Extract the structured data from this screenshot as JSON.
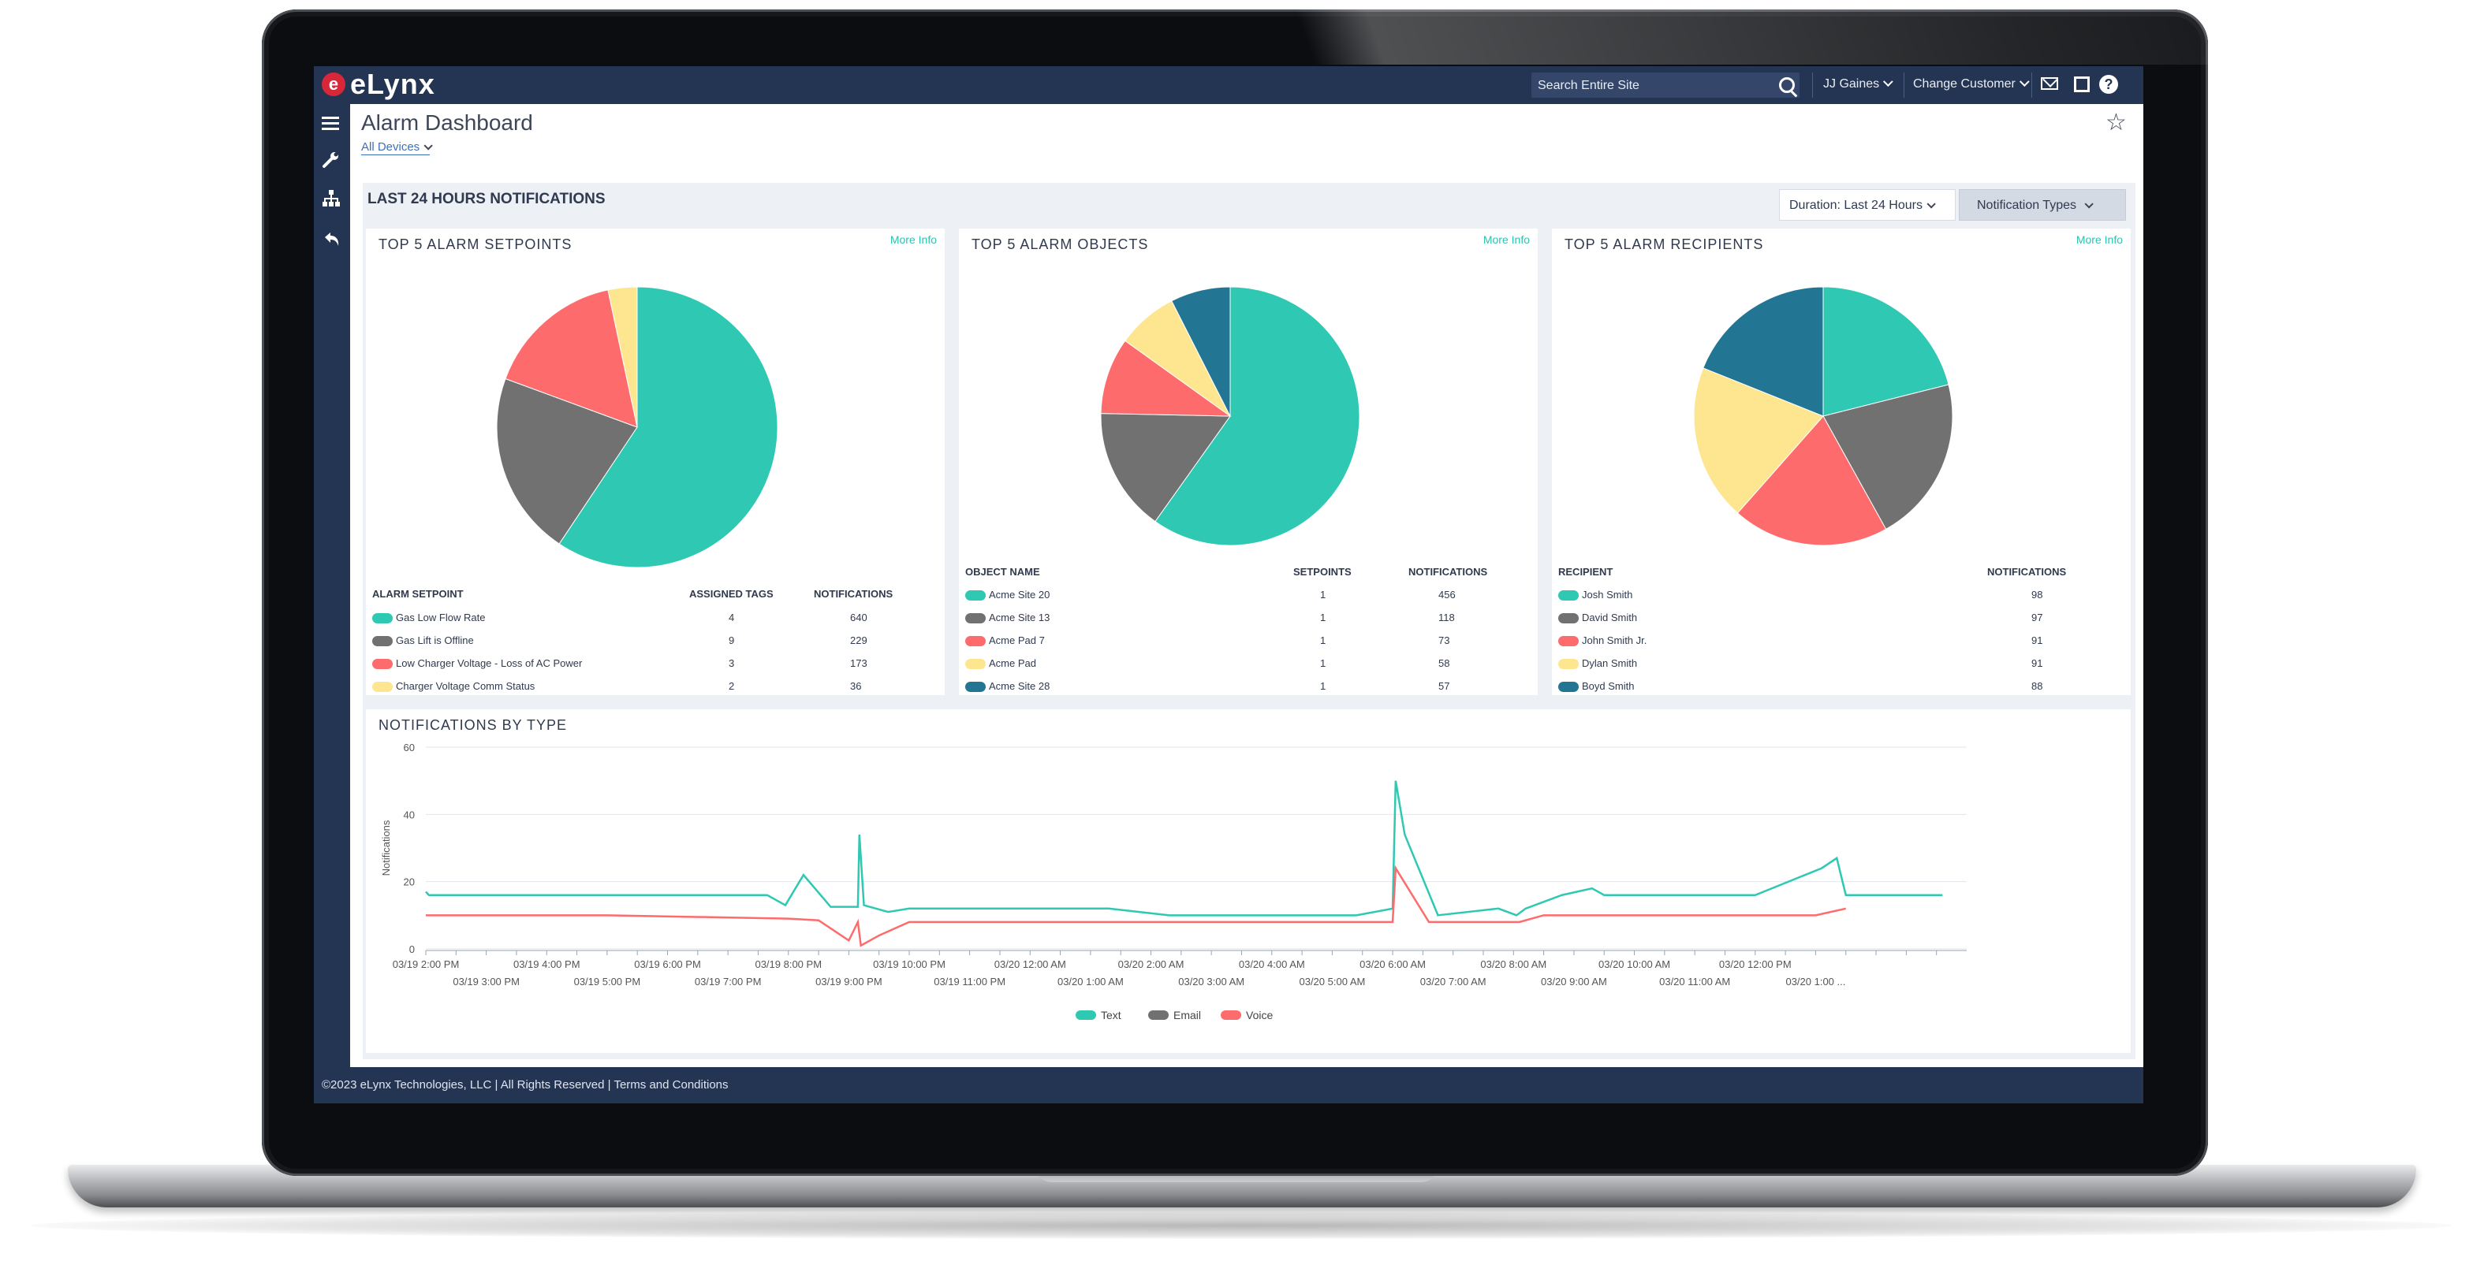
{
  "app": {
    "logo_letter": "e",
    "logo_text": "eLynx"
  },
  "header": {
    "search_placeholder": "Search Entire Site",
    "user": "JJ Gaines",
    "change_customer": "Change Customer"
  },
  "page": {
    "title": "Alarm Dashboard",
    "device_filter": "All Devices"
  },
  "section": {
    "title": "LAST 24 HOURS NOTIFICATIONS",
    "duration": "Duration: Last 24 Hours",
    "notification_types": "Notification Types"
  },
  "colors": {
    "teal": "#2ec8b3",
    "gray": "#717171",
    "red": "#fe6b6d",
    "yellow": "#fee690",
    "blue": "#227694",
    "navy": "#243453"
  },
  "setpoints": {
    "title": "TOP 5 ALARM SETPOINTS",
    "more": "More Info",
    "headers": [
      "ALARM SETPOINT",
      "ASSIGNED TAGS",
      "NOTIFICATIONS"
    ],
    "rows": [
      {
        "name": "Gas Low Flow Rate",
        "tags": "4",
        "notifications": "640",
        "color": "#2ec8b3"
      },
      {
        "name": "Gas Lift is Offline",
        "tags": "9",
        "notifications": "229",
        "color": "#717171"
      },
      {
        "name": "Low Charger Voltage - Loss of AC Power",
        "tags": "3",
        "notifications": "173",
        "color": "#fe6b6d"
      },
      {
        "name": "Charger Voltage Comm Status",
        "tags": "2",
        "notifications": "36",
        "color": "#fee690"
      }
    ]
  },
  "objects": {
    "title": "TOP 5 ALARM OBJECTS",
    "more": "More Info",
    "headers": [
      "OBJECT NAME",
      "SETPOINTS",
      "NOTIFICATIONS"
    ],
    "rows": [
      {
        "name": "Acme Site 20",
        "setpoints": "1",
        "notifications": "456",
        "color": "#2ec8b3"
      },
      {
        "name": "Acme Site 13",
        "setpoints": "1",
        "notifications": "118",
        "color": "#717171"
      },
      {
        "name": "Acme Pad 7",
        "setpoints": "1",
        "notifications": "73",
        "color": "#fe6b6d"
      },
      {
        "name": "Acme Pad",
        "setpoints": "1",
        "notifications": "58",
        "color": "#fee690"
      },
      {
        "name": "Acme Site 28",
        "setpoints": "1",
        "notifications": "57",
        "color": "#227694"
      }
    ]
  },
  "recipients": {
    "title": "TOP 5 ALARM RECIPIENTS",
    "more": "More Info",
    "headers": [
      "RECIPIENT",
      "NOTIFICATIONS"
    ],
    "rows": [
      {
        "name": "Josh Smith",
        "notifications": "98",
        "color": "#2ec8b3"
      },
      {
        "name": "David Smith",
        "notifications": "97",
        "color": "#717171"
      },
      {
        "name": "John Smith Jr.",
        "notifications": "91",
        "color": "#fe6b6d"
      },
      {
        "name": "Dylan Smith",
        "notifications": "91",
        "color": "#fee690"
      },
      {
        "name": "Boyd Smith",
        "notifications": "88",
        "color": "#227694"
      }
    ]
  },
  "line": {
    "title": "NOTIFICATIONS BY TYPE",
    "ylabel": "Notifications",
    "legend": [
      "Text",
      "Email",
      "Voice"
    ]
  },
  "footer": {
    "text": "©2023 eLynx Technologies, LLC | All Rights Reserved | Terms and Conditions"
  },
  "chart_data": [
    {
      "type": "pie",
      "title": "TOP 5 ALARM SETPOINTS",
      "categories": [
        "Gas Low Flow Rate",
        "Gas Lift is Offline",
        "Low Charger Voltage - Loss of AC Power",
        "Charger Voltage Comm Status"
      ],
      "values": [
        640,
        229,
        173,
        36
      ]
    },
    {
      "type": "pie",
      "title": "TOP 5 ALARM OBJECTS",
      "categories": [
        "Acme Site 20",
        "Acme Site 13",
        "Acme Pad 7",
        "Acme Pad",
        "Acme Site 28"
      ],
      "values": [
        456,
        118,
        73,
        58,
        57
      ]
    },
    {
      "type": "pie",
      "title": "TOP 5 ALARM RECIPIENTS",
      "categories": [
        "Josh Smith",
        "David Smith",
        "John Smith Jr.",
        "Dylan Smith",
        "Boyd Smith"
      ],
      "values": [
        98,
        97,
        91,
        91,
        88
      ]
    },
    {
      "type": "line",
      "title": "NOTIFICATIONS BY TYPE",
      "ylabel": "Notifications",
      "ylim": [
        0,
        60
      ],
      "yticks": [
        0,
        20,
        40,
        60
      ],
      "xtick_labels_top": [
        "03/19 2:00 PM",
        "03/19 4:00 PM",
        "03/19 6:00 PM",
        "03/19 8:00 PM",
        "03/19 10:00 PM",
        "03/20 12:00 AM",
        "03/20 2:00 AM",
        "03/20 4:00 AM",
        "03/20 6:00 AM",
        "03/20 8:00 AM",
        "03/20 10:00 AM",
        "03/20 12:00 PM"
      ],
      "xtick_labels_bottom": [
        "03/19 3:00 PM",
        "03/19 5:00 PM",
        "03/19 7:00 PM",
        "03/19 9:00 PM",
        "03/19 11:00 PM",
        "03/20 1:00 AM",
        "03/20 3:00 AM",
        "03/20 5:00 AM",
        "03/20 7:00 AM",
        "03/20 9:00 AM",
        "03/20 11:00 AM",
        "03/20 1:00 ..."
      ],
      "x_hours_since_0319_2pm_note": "x values are hours after 03/19 2:00 PM",
      "series": [
        {
          "name": "Text",
          "color": "#2ec8b3",
          "x": [
            0,
            0.1,
            11.3,
            11.9,
            12.5,
            13.4,
            14.3,
            14.35,
            14.5,
            15.3,
            16,
            22.6,
            24.6,
            27,
            30.8,
            32,
            32.1,
            32.4,
            33.5,
            35.5,
            36.1,
            36.4,
            37.6,
            38.6,
            39,
            44,
            46.2,
            46.7,
            47,
            50.2
          ],
          "y": [
            17,
            16,
            16,
            13,
            22,
            12.5,
            12.5,
            34,
            13,
            11,
            12,
            12,
            10,
            10,
            10,
            12,
            50,
            34,
            10,
            12,
            10,
            12,
            16,
            18,
            16,
            16,
            24,
            27,
            16,
            16
          ]
        },
        {
          "name": "Voice",
          "color": "#fe6b6d",
          "x": [
            0,
            6,
            12,
            13,
            14,
            14.3,
            14.4,
            15,
            16,
            20,
            26,
            30,
            32,
            32.1,
            33.2,
            36.2,
            37,
            40,
            44,
            46,
            47
          ],
          "y": [
            10,
            10,
            9,
            8.5,
            2.5,
            8,
            1,
            4,
            8,
            8,
            8,
            8,
            8,
            24,
            8,
            8,
            10,
            10,
            10,
            10,
            12
          ]
        }
      ]
    }
  ]
}
